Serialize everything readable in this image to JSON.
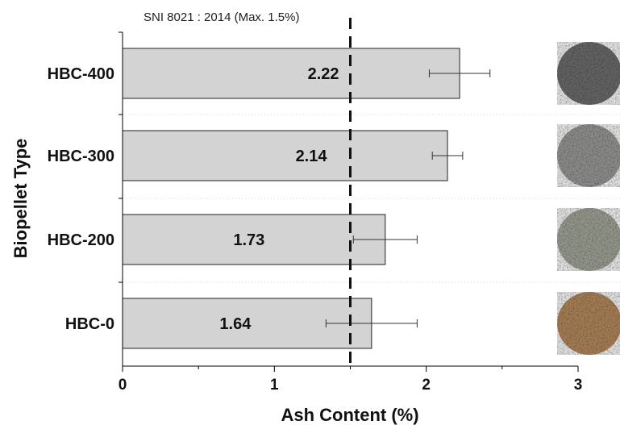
{
  "chart_data": {
    "type": "bar",
    "orientation": "horizontal",
    "categories": [
      "HBC-400",
      "HBC-300",
      "HBC-200",
      "HBC-0"
    ],
    "values": [
      2.22,
      2.14,
      1.73,
      1.64
    ],
    "value_labels": [
      "2.22",
      "2.14",
      "1.73",
      "1.64"
    ],
    "error_low": [
      2.02,
      2.04,
      1.52,
      1.34
    ],
    "error_high": [
      2.42,
      2.24,
      1.94,
      1.94
    ],
    "xlabel": "Ash Content (%)",
    "ylabel": "Biopellet Type",
    "xlim": [
      0,
      3
    ],
    "xticks": [
      "0",
      "1",
      "2",
      "3"
    ],
    "reference_line": {
      "value": 1.5,
      "label": "SNI 8021 : 2014 (Max. 1.5%)",
      "style": "dashed"
    },
    "grid": "horizontal dotted separators",
    "legend": "none",
    "colors": {
      "bar_fill": "#d3d3d3",
      "bar_stroke": "#222222",
      "reference": "#111111"
    },
    "thumbnails": [
      {
        "category": "HBC-400",
        "description": "dark grey pellets",
        "color": "#6e6e6e"
      },
      {
        "category": "HBC-300",
        "description": "grey pellets",
        "color": "#9a9a98"
      },
      {
        "category": "HBC-200",
        "description": "light grey-green pellets",
        "color": "#a3a69a"
      },
      {
        "category": "HBC-0",
        "description": "tan brown pellets",
        "color": "#b58a5e"
      }
    ]
  }
}
